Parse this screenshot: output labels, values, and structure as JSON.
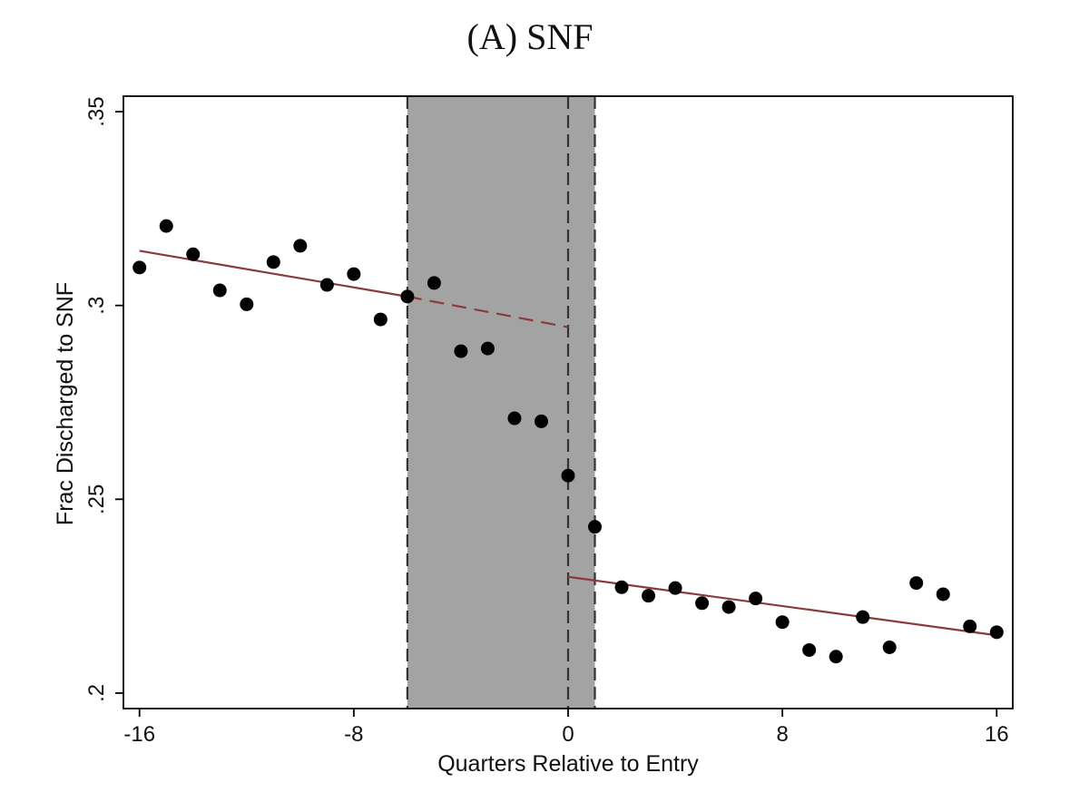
{
  "chart_data": {
    "type": "scatter",
    "title": "(A) SNF",
    "xlabel": "Quarters Relative to Entry",
    "ylabel": "Frac Discharged to SNF",
    "xlim": [
      -16.6,
      16.6
    ],
    "ylim": [
      0.196,
      0.354
    ],
    "x_ticks": [
      -16,
      -8,
      0,
      8,
      16
    ],
    "x_tick_labels": [
      "-16",
      "-8",
      "0",
      "8",
      "16"
    ],
    "y_ticks": [
      0.2,
      0.25,
      0.3,
      0.35
    ],
    "y_tick_labels": [
      ".2",
      ".25",
      ".3",
      ".35"
    ],
    "grid": false,
    "legend": "none",
    "shaded_region": {
      "x_start": -6,
      "x_end": 1,
      "color": "#a3a3a3"
    },
    "vertical_dashed_lines": [
      -6,
      0,
      1
    ],
    "points": [
      {
        "x": -16,
        "y": 0.3098
      },
      {
        "x": -15,
        "y": 0.3205
      },
      {
        "x": -14,
        "y": 0.3132
      },
      {
        "x": -13,
        "y": 0.3039
      },
      {
        "x": -12,
        "y": 0.3003
      },
      {
        "x": -11,
        "y": 0.3112
      },
      {
        "x": -10,
        "y": 0.3154
      },
      {
        "x": -9,
        "y": 0.3053
      },
      {
        "x": -8,
        "y": 0.3081
      },
      {
        "x": -7,
        "y": 0.2964
      },
      {
        "x": -6,
        "y": 0.3023
      },
      {
        "x": -5,
        "y": 0.3058
      },
      {
        "x": -4,
        "y": 0.2882
      },
      {
        "x": -3,
        "y": 0.2889
      },
      {
        "x": -2,
        "y": 0.2709
      },
      {
        "x": -1,
        "y": 0.2701
      },
      {
        "x": 0,
        "y": 0.2561
      },
      {
        "x": 1,
        "y": 0.2429
      },
      {
        "x": 2,
        "y": 0.2273
      },
      {
        "x": 3,
        "y": 0.2251
      },
      {
        "x": 4,
        "y": 0.2271
      },
      {
        "x": 5,
        "y": 0.2232
      },
      {
        "x": 6,
        "y": 0.2222
      },
      {
        "x": 7,
        "y": 0.2244
      },
      {
        "x": 8,
        "y": 0.2183
      },
      {
        "x": 9,
        "y": 0.2111
      },
      {
        "x": 10,
        "y": 0.2094
      },
      {
        "x": 11,
        "y": 0.2196
      },
      {
        "x": 12,
        "y": 0.2118
      },
      {
        "x": 13,
        "y": 0.2284
      },
      {
        "x": 14,
        "y": 0.2255
      },
      {
        "x": 15,
        "y": 0.2172
      },
      {
        "x": 16,
        "y": 0.2157
      }
    ],
    "fit_lines": [
      {
        "style": "solid",
        "color": "#8b3a3a",
        "x": [
          -16,
          -6
        ],
        "y": [
          0.3141,
          0.3023
        ]
      },
      {
        "style": "dashed",
        "color": "#8b3a3a",
        "x": [
          -6,
          0
        ],
        "y": [
          0.3023,
          0.2944
        ]
      },
      {
        "style": "solid",
        "color": "#8b3a3a",
        "x": [
          0,
          16
        ],
        "y": [
          0.23,
          0.2149
        ]
      }
    ],
    "point_color": "#000000"
  }
}
